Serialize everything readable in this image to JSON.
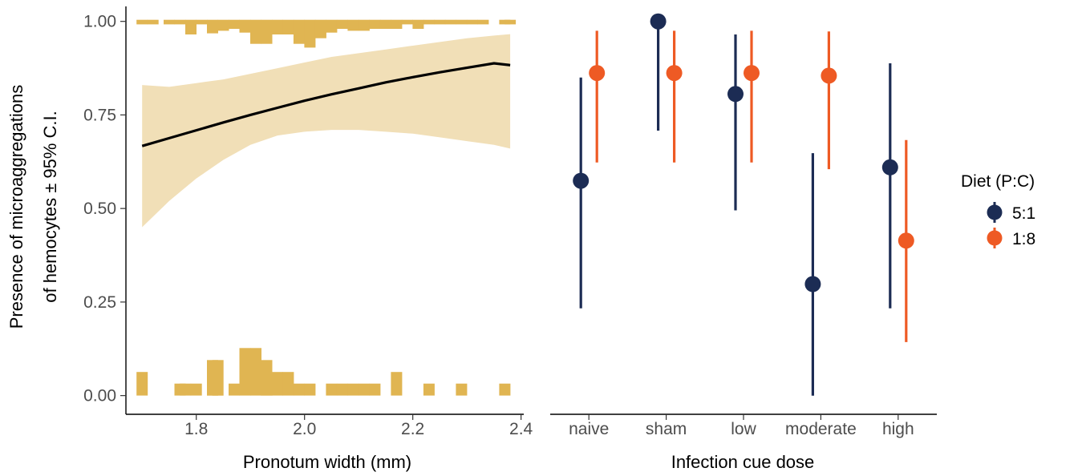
{
  "colors": {
    "diet_5_1": "#1c2c54",
    "diet_1_8": "#ee5a24",
    "histogram": "#e0b552",
    "ribbon": "#f1dfb7",
    "fit_line": "#000000"
  },
  "left_panel": {
    "y_axis_title_line1": "Presence of microaggregations",
    "y_axis_title_line2": "of hemocytes ± 95% C.I.",
    "x_axis_title": "Pronotum width (mm)",
    "x_tick_labels": [
      "1.8",
      "2.0",
      "2.2",
      "2.4"
    ],
    "y_tick_labels": [
      "0.00",
      "0.25",
      "0.50",
      "0.75",
      "1.00"
    ]
  },
  "right_panel": {
    "x_axis_title": "Infection cue dose",
    "x_tick_labels": [
      "naive",
      "sham",
      "low",
      "moderate",
      "high"
    ]
  },
  "legend": {
    "title": "Diet (P:C)",
    "items": [
      {
        "label": "5:1",
        "color": "#1c2c54"
      },
      {
        "label": "1:8",
        "color": "#ee5a24"
      }
    ]
  },
  "chart_data": [
    {
      "type": "line",
      "xlabel": "Pronotum width (mm)",
      "ylabel": "Presence of microaggregations of hemocytes ± 95% C.I.",
      "xlim": [
        1.67,
        2.405
      ],
      "ylim": [
        -0.05,
        1.04
      ],
      "xticks": [
        1.8,
        2.0,
        2.2,
        2.4
      ],
      "yticks": [
        0.0,
        0.25,
        0.5,
        0.75,
        1.0
      ],
      "grid": false,
      "series": [
        {
          "kind": "logistic_fit",
          "x": [
            1.7,
            1.75,
            1.8,
            1.85,
            1.9,
            1.95,
            2.0,
            2.05,
            2.1,
            2.15,
            2.2,
            2.25,
            2.3,
            2.35,
            2.38
          ],
          "y": [
            0.667,
            0.688,
            0.709,
            0.73,
            0.75,
            0.769,
            0.788,
            0.805,
            0.821,
            0.837,
            0.851,
            0.864,
            0.876,
            0.888,
            0.883
          ],
          "ci_lower": [
            0.45,
            0.52,
            0.58,
            0.63,
            0.67,
            0.695,
            0.705,
            0.71,
            0.71,
            0.705,
            0.7,
            0.69,
            0.68,
            0.67,
            0.66
          ],
          "ci_upper": [
            0.83,
            0.825,
            0.835,
            0.845,
            0.86,
            0.875,
            0.89,
            0.905,
            0.915,
            0.925,
            0.935,
            0.945,
            0.955,
            0.962,
            0.966
          ]
        }
      ],
      "histogram_top": {
        "baseline": 1.0,
        "x": [
          1.7,
          1.72,
          1.75,
          1.77,
          1.79,
          1.81,
          1.83,
          1.85,
          1.87,
          1.89,
          1.91,
          1.93,
          1.95,
          1.97,
          1.99,
          2.01,
          2.03,
          2.05,
          2.07,
          2.09,
          2.11,
          2.13,
          2.15,
          2.17,
          2.19,
          2.21,
          2.23,
          2.25,
          2.27,
          2.29,
          2.31,
          2.33,
          2.37,
          2.38
        ],
        "height": [
          0.008,
          0.008,
          0.008,
          0.008,
          0.035,
          0.008,
          0.032,
          0.025,
          0.02,
          0.03,
          0.06,
          0.06,
          0.035,
          0.035,
          0.06,
          0.07,
          0.045,
          0.03,
          0.02,
          0.025,
          0.025,
          0.02,
          0.02,
          0.02,
          0.008,
          0.02,
          0.008,
          0.008,
          0.008,
          0.008,
          0.008,
          0.008,
          0.008,
          0.008
        ]
      },
      "histogram_bottom": {
        "baseline": 0.0,
        "x": [
          1.7,
          1.77,
          1.78,
          1.8,
          1.83,
          1.84,
          1.87,
          1.89,
          1.91,
          1.93,
          1.95,
          1.97,
          1.99,
          2.01,
          2.05,
          2.07,
          2.09,
          2.11,
          2.13,
          2.17,
          2.23,
          2.29,
          2.37
        ],
        "height": [
          0.063,
          0.032,
          0.032,
          0.032,
          0.095,
          0.095,
          0.032,
          0.127,
          0.127,
          0.095,
          0.063,
          0.063,
          0.032,
          0.032,
          0.032,
          0.032,
          0.032,
          0.032,
          0.032,
          0.063,
          0.032,
          0.032,
          0.032
        ]
      }
    },
    {
      "type": "scatter",
      "subtype": "pointrange",
      "xlabel": "Infection cue dose",
      "categories": [
        "naive",
        "sham",
        "low",
        "moderate",
        "high"
      ],
      "ylim": [
        -0.05,
        1.04
      ],
      "grid": false,
      "legend_title": "Diet (P:C)",
      "legend_position": "right",
      "series": [
        {
          "name": "5:1",
          "values": [
            0.574,
            1.0,
            0.806,
            0.298,
            0.61
          ],
          "lower": [
            0.233,
            0.708,
            0.495,
            0.0,
            0.233
          ],
          "upper": [
            0.85,
            1.0,
            0.965,
            0.648,
            0.888
          ]
        },
        {
          "name": "1:8",
          "values": [
            0.862,
            0.862,
            0.862,
            0.855,
            0.414
          ],
          "lower": [
            0.623,
            0.623,
            0.623,
            0.605,
            0.143
          ],
          "upper": [
            0.975,
            0.975,
            0.975,
            0.973,
            0.683
          ]
        }
      ]
    }
  ]
}
